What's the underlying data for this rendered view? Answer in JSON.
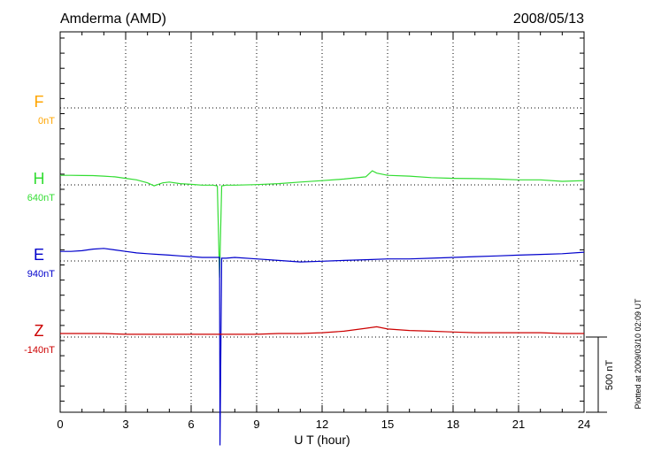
{
  "chart_data": {
    "type": "line",
    "station": "Amderma (AMD)",
    "date": "2008/05/13",
    "xlabel": "U T (hour)",
    "xlim": [
      0,
      24
    ],
    "xticks": [
      "0",
      "3",
      "6",
      "9",
      "12",
      "15",
      "18",
      "21",
      "24"
    ],
    "scale_bar_label": "500 nT",
    "plotted_note": "Plotted at 2009/03/10 02:09 UT",
    "grid": true,
    "series": [
      {
        "name": "F",
        "baseline": "0nT",
        "color": "#ffa500",
        "points": []
      },
      {
        "name": "H",
        "baseline": "640nT",
        "color": "#33dd33",
        "points": [
          [
            0,
            40
          ],
          [
            0.5,
            40
          ],
          [
            1,
            39
          ],
          [
            1.5,
            38
          ],
          [
            2,
            35
          ],
          [
            2.5,
            30
          ],
          [
            3,
            20
          ],
          [
            3.5,
            10
          ],
          [
            4,
            -10
          ],
          [
            4.3,
            -30
          ],
          [
            4.7,
            -10
          ],
          [
            5,
            -5
          ],
          [
            5.5,
            -15
          ],
          [
            6,
            -20
          ],
          [
            6.5,
            -25
          ],
          [
            7,
            -25
          ],
          [
            7.2,
            -30
          ],
          [
            7.3,
            -640
          ],
          [
            7.4,
            -30
          ],
          [
            7.6,
            -25
          ],
          [
            8,
            -25
          ],
          [
            9,
            -22
          ],
          [
            10,
            -15
          ],
          [
            11,
            -5
          ],
          [
            12,
            5
          ],
          [
            13,
            15
          ],
          [
            14,
            30
          ],
          [
            14.3,
            70
          ],
          [
            14.5,
            55
          ],
          [
            15,
            40
          ],
          [
            16,
            35
          ],
          [
            17,
            25
          ],
          [
            18,
            20
          ],
          [
            19,
            18
          ],
          [
            20,
            15
          ],
          [
            21,
            10
          ],
          [
            22,
            10
          ],
          [
            23,
            0
          ],
          [
            24,
            5
          ]
        ]
      },
      {
        "name": "E",
        "baseline": "940nT",
        "color": "#0000cc",
        "points": [
          [
            0,
            40
          ],
          [
            0.5,
            40
          ],
          [
            1,
            45
          ],
          [
            1.5,
            55
          ],
          [
            2,
            60
          ],
          [
            2.5,
            50
          ],
          [
            3,
            40
          ],
          [
            3.5,
            30
          ],
          [
            4,
            25
          ],
          [
            4.5,
            20
          ],
          [
            5,
            15
          ],
          [
            5.5,
            10
          ],
          [
            6,
            5
          ],
          [
            6.5,
            0
          ],
          [
            7,
            0
          ],
          [
            7.3,
            0
          ],
          [
            7.32,
            -1250
          ],
          [
            7.4,
            -5
          ],
          [
            7.6,
            -5
          ],
          [
            8,
            0
          ],
          [
            9,
            -10
          ],
          [
            10,
            -20
          ],
          [
            11,
            -30
          ],
          [
            12,
            -25
          ],
          [
            13,
            -20
          ],
          [
            14,
            -15
          ],
          [
            15,
            -10
          ],
          [
            16,
            -10
          ],
          [
            17,
            -5
          ],
          [
            18,
            0
          ],
          [
            19,
            5
          ],
          [
            20,
            10
          ],
          [
            21,
            15
          ],
          [
            22,
            20
          ],
          [
            23,
            25
          ],
          [
            24,
            35
          ]
        ]
      },
      {
        "name": "Z",
        "baseline": "-140nT",
        "color": "#cc0000",
        "points": [
          [
            0,
            0
          ],
          [
            1,
            0
          ],
          [
            2,
            0
          ],
          [
            3,
            -5
          ],
          [
            4,
            -5
          ],
          [
            5,
            -5
          ],
          [
            6,
            -5
          ],
          [
            7,
            -5
          ],
          [
            7.32,
            -5
          ],
          [
            8,
            -5
          ],
          [
            9,
            -5
          ],
          [
            10,
            0
          ],
          [
            11,
            0
          ],
          [
            12,
            5
          ],
          [
            13,
            15
          ],
          [
            14,
            35
          ],
          [
            14.5,
            45
          ],
          [
            15,
            30
          ],
          [
            16,
            20
          ],
          [
            17,
            15
          ],
          [
            18,
            10
          ],
          [
            19,
            5
          ],
          [
            20,
            5
          ],
          [
            21,
            5
          ],
          [
            22,
            5
          ],
          [
            23,
            0
          ],
          [
            24,
            0
          ]
        ]
      }
    ]
  }
}
